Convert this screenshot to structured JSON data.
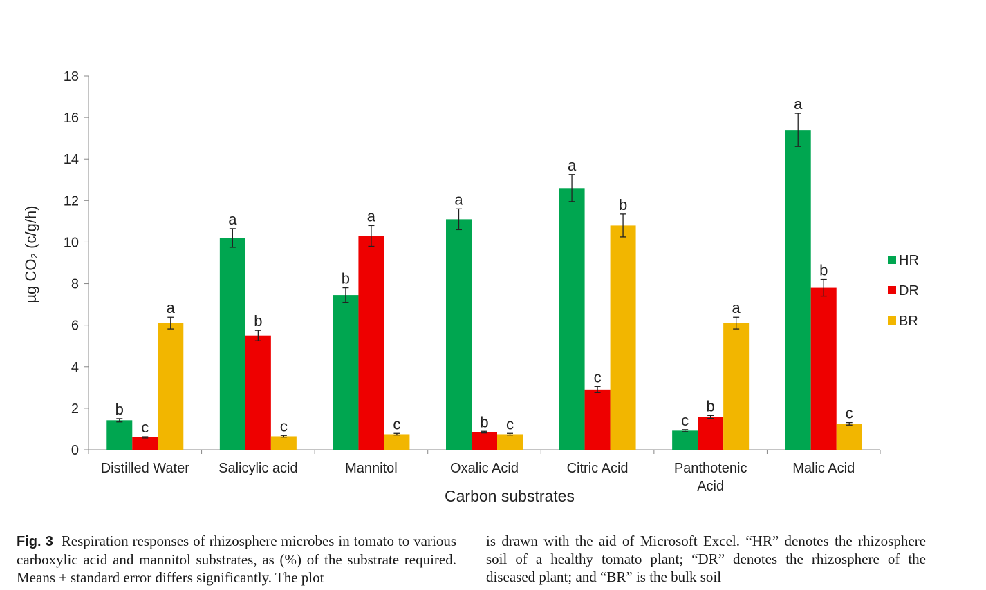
{
  "chart_data": {
    "type": "bar",
    "categories": [
      "Distilled Water",
      "Salicylic acid",
      "Mannitol",
      "Oxalic Acid",
      "Citric Acid",
      "Panthotenic\nAcid",
      "Malic Acid"
    ],
    "series": [
      {
        "name": "HR",
        "color": "#00a650",
        "values": [
          1.42,
          10.2,
          7.45,
          11.1,
          12.6,
          0.92,
          15.4
        ],
        "errors": [
          0.08,
          0.45,
          0.35,
          0.5,
          0.65,
          0.05,
          0.8
        ],
        "letters": [
          "b",
          "a",
          "b",
          "a",
          "a",
          "c",
          "a"
        ]
      },
      {
        "name": "DR",
        "color": "#ee0000",
        "values": [
          0.6,
          5.5,
          10.3,
          0.85,
          2.9,
          1.58,
          7.8
        ],
        "errors": [
          0.03,
          0.25,
          0.5,
          0.04,
          0.15,
          0.07,
          0.4
        ],
        "letters": [
          "c",
          "b",
          "a",
          "b",
          "c",
          "b",
          "b"
        ]
      },
      {
        "name": "BR",
        "color": "#f2b600",
        "values": [
          6.1,
          0.65,
          0.75,
          0.75,
          10.8,
          6.1,
          1.25
        ],
        "errors": [
          0.28,
          0.04,
          0.04,
          0.04,
          0.55,
          0.28,
          0.06
        ],
        "letters": [
          "a",
          "c",
          "c",
          "c",
          "b",
          "a",
          "c"
        ]
      }
    ],
    "xlabel": "Carbon substrates",
    "ylabel": "µg CO₂ (c/g/h)",
    "ylim": [
      0,
      18
    ],
    "yticks": [
      0,
      2,
      4,
      6,
      8,
      10,
      12,
      14,
      16,
      18
    ],
    "grid": false,
    "legend_position": "right"
  },
  "caption": {
    "label": "Fig. 3",
    "left_text": "Respiration responses of rhizosphere microbes in tomato to various carboxylic acid and mannitol substrates, as (%) of the substrate required. Means ± standard error differs significantly. The plot",
    "right_text": "is drawn with the aid of Microsoft Excel. “HR” denotes the rhizosphere soil of a healthy tomato plant; “DR” denotes the rhizosphere of the diseased plant; and “BR” is the bulk soil"
  }
}
